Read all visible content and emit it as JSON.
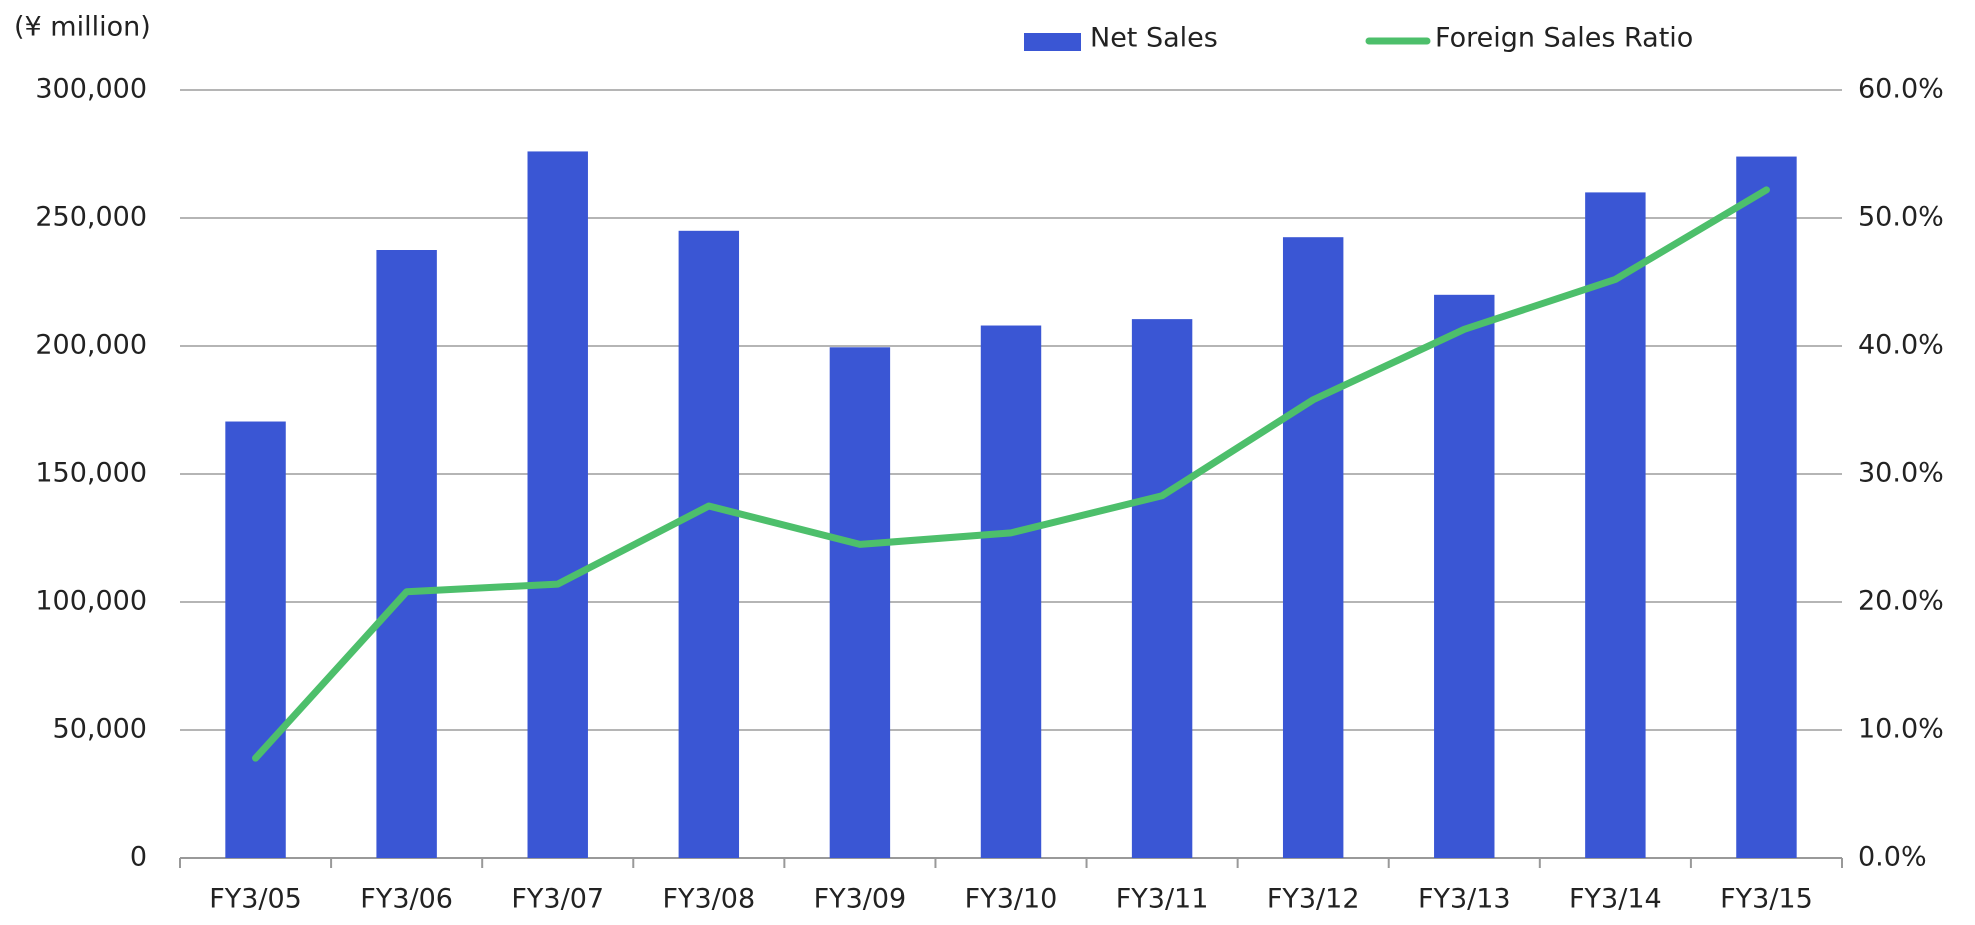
{
  "chart_data": {
    "type": "bar",
    "y_label": "(¥ million)",
    "categories": [
      "FY3/05",
      "FY3/06",
      "FY3/07",
      "FY3/08",
      "FY3/09",
      "FY3/10",
      "FY3/11",
      "FY3/12",
      "FY3/13",
      "FY3/14",
      "FY3/15"
    ],
    "series": [
      {
        "name": "Net Sales",
        "color": "#3a56d4",
        "type": "bar",
        "values": [
          170500,
          237500,
          276000,
          245000,
          199500,
          208000,
          210500,
          242500,
          220000,
          260000,
          274000
        ]
      },
      {
        "name": "Foreign Sales Ratio",
        "color": "#4dbf6b",
        "type": "line",
        "axis": "y2",
        "values": [
          7.8,
          20.8,
          21.4,
          27.5,
          24.5,
          25.4,
          28.3,
          35.8,
          41.3,
          45.2,
          52.2
        ]
      }
    ],
    "ylim": [
      0,
      300000
    ],
    "yticks": [
      0,
      {
        "value": 50000,
        "label": "50,000"
      },
      {
        "value": 100000,
        "label": "100,000"
      },
      {
        "value": 150000,
        "label": "150,000"
      },
      {
        "value": 200000,
        "label": "200,000"
      },
      {
        "value": 250000,
        "label": "250,000"
      },
      {
        "value": 300000,
        "label": "300,000"
      }
    ],
    "y2lim": [
      0,
      60
    ],
    "y2ticks": [
      {
        "value": 0,
        "label": "0.0%"
      },
      {
        "value": 10,
        "label": "10.0%"
      },
      {
        "value": 20,
        "label": "20.0%"
      },
      {
        "value": 30,
        "label": "30.0%"
      },
      {
        "value": 40,
        "label": "40.0%"
      },
      {
        "value": 50,
        "label": "50.0%"
      },
      {
        "value": 60,
        "label": "60.0%"
      }
    ],
    "grid": true,
    "legend": "top"
  }
}
